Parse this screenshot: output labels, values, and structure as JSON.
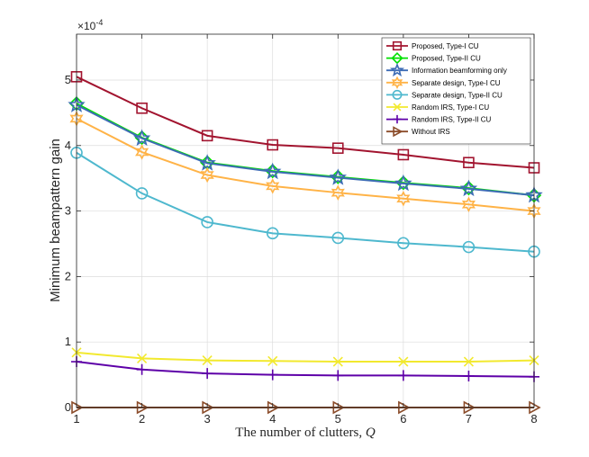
{
  "chart_data": {
    "type": "line",
    "title": "",
    "xlabel_prefix": "The number of clutters, ",
    "xlabel_symbol": "Q",
    "ylabel": "Minimum beampattern gain",
    "y_exponent_base": "×10",
    "y_exponent_power": "-4",
    "x": [
      1,
      2,
      3,
      4,
      5,
      6,
      7,
      8
    ],
    "xlim": [
      1,
      8
    ],
    "ylim": [
      0,
      5.7
    ],
    "xticks": [
      "1",
      "2",
      "3",
      "4",
      "5",
      "6",
      "7",
      "8"
    ],
    "yticks": [
      "0",
      "1",
      "2",
      "3",
      "4",
      "5"
    ],
    "grid": true,
    "legend_position": "top-right",
    "series": [
      {
        "name": "Proposed, Type-I CU",
        "color": "#A2142F",
        "marker": "square",
        "values": [
          5.05,
          4.57,
          4.15,
          4.01,
          3.96,
          3.86,
          3.74,
          3.66
        ]
      },
      {
        "name": "Proposed, Type-II CU",
        "color": "#00E000",
        "marker": "diamond",
        "values": [
          4.64,
          4.12,
          3.74,
          3.61,
          3.52,
          3.43,
          3.35,
          3.24
        ]
      },
      {
        "name": "Information beamforming only",
        "color": "#3D6CB5",
        "marker": "pentagram",
        "values": [
          4.62,
          4.11,
          3.73,
          3.6,
          3.51,
          3.42,
          3.34,
          3.24
        ]
      },
      {
        "name": "Separate design, Type-I CU",
        "color": "#FFB347",
        "marker": "hexagram",
        "values": [
          4.41,
          3.9,
          3.55,
          3.38,
          3.28,
          3.19,
          3.1,
          3.0
        ]
      },
      {
        "name": "Separate design, Type-II CU",
        "color": "#4EB8CE",
        "marker": "circle",
        "values": [
          3.89,
          3.27,
          2.83,
          2.66,
          2.59,
          2.51,
          2.45,
          2.38
        ]
      },
      {
        "name": "Random IRS, Type-I CU",
        "color": "#F2E92E",
        "marker": "x",
        "values": [
          0.84,
          0.75,
          0.72,
          0.71,
          0.7,
          0.7,
          0.7,
          0.72
        ]
      },
      {
        "name": "Random IRS, Type-II CU",
        "color": "#5E00A8",
        "marker": "plus",
        "values": [
          0.7,
          0.58,
          0.52,
          0.5,
          0.49,
          0.49,
          0.48,
          0.47
        ]
      },
      {
        "name": "Without IRS",
        "color": "#8B4C2A",
        "marker": "triangle-right",
        "values": [
          0,
          0,
          0,
          0,
          0,
          0,
          0,
          0
        ]
      }
    ]
  }
}
